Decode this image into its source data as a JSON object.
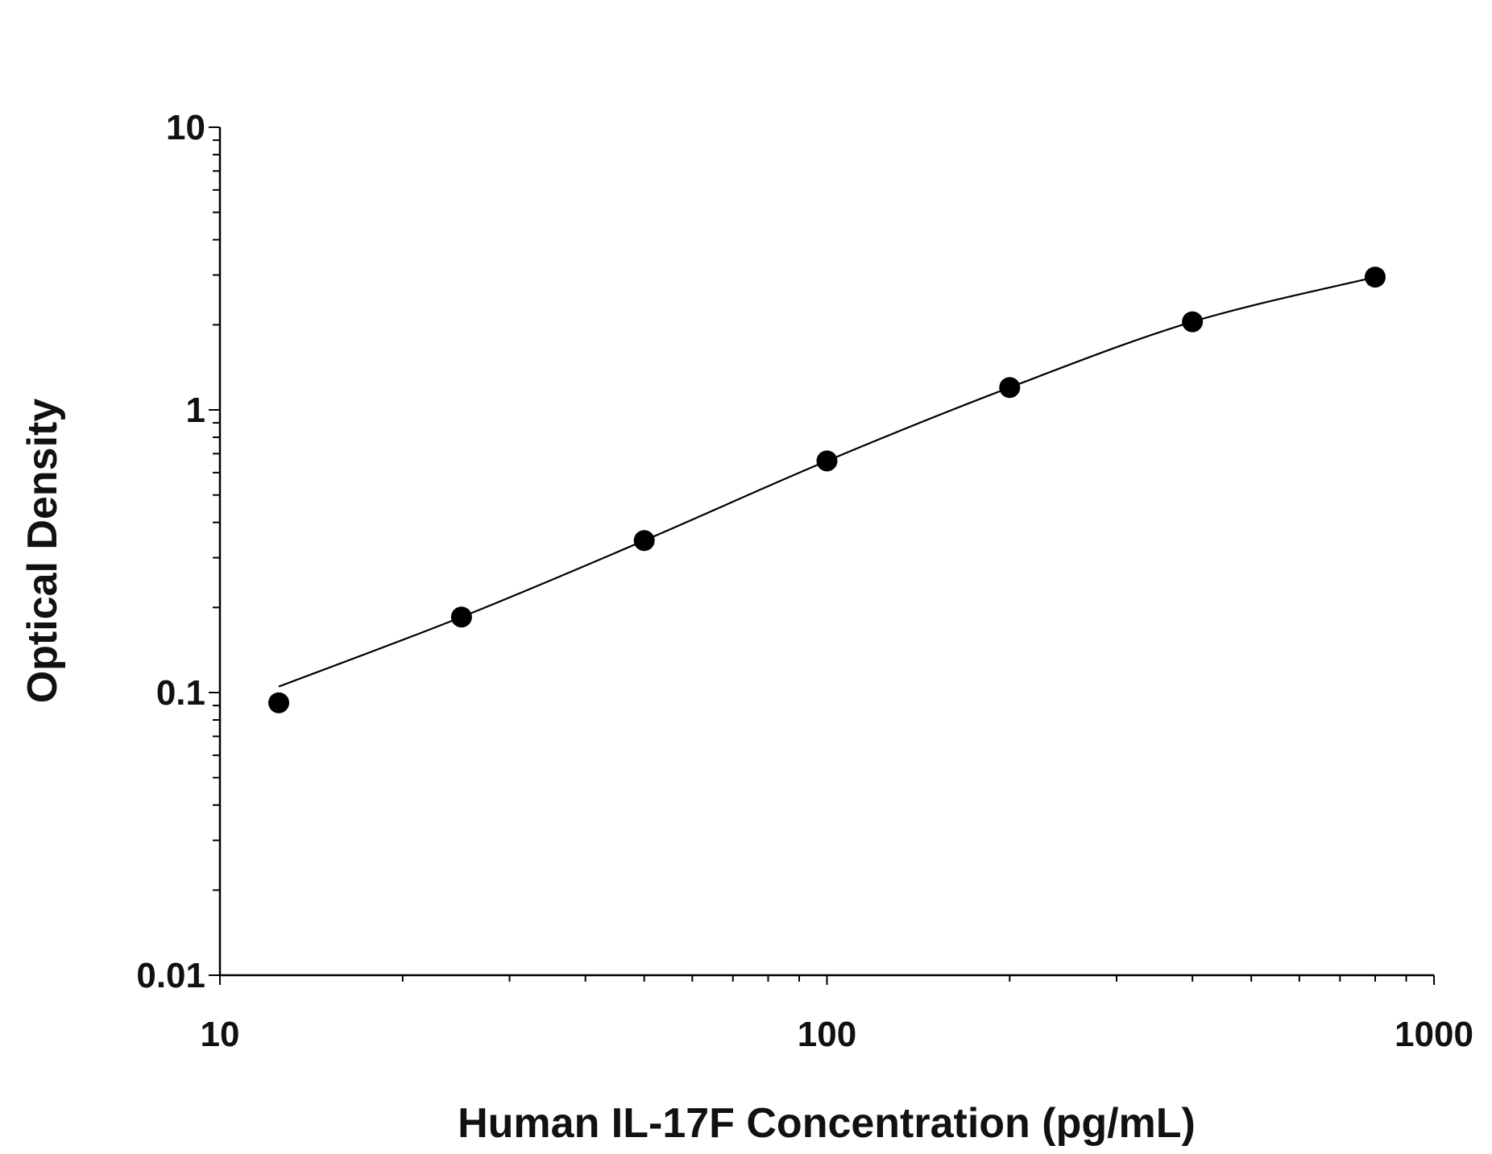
{
  "chart_data": {
    "type": "scatter",
    "title": "",
    "xlabel": "Human IL-17F Concentration (pg/mL)",
    "ylabel": "Optical Density",
    "xscale": "log",
    "yscale": "log",
    "xlim": [
      10,
      1000
    ],
    "ylim": [
      0.01,
      10
    ],
    "x_ticks": [
      "10",
      "100",
      "1000"
    ],
    "y_ticks": [
      "0.01",
      "0.1",
      "1",
      "10"
    ],
    "grid": false,
    "legend": "none",
    "x": [
      12.5,
      25,
      50,
      100,
      200,
      400,
      800
    ],
    "y": [
      0.092,
      0.185,
      0.345,
      0.66,
      1.2,
      2.05,
      2.95
    ],
    "fit_curve": {
      "x": [
        12.5,
        25,
        50,
        100,
        200,
        400,
        800
      ],
      "y": [
        0.105,
        0.185,
        0.345,
        0.66,
        1.2,
        2.05,
        2.95
      ]
    },
    "marker_color": "#000000",
    "line_color": "#000000"
  }
}
